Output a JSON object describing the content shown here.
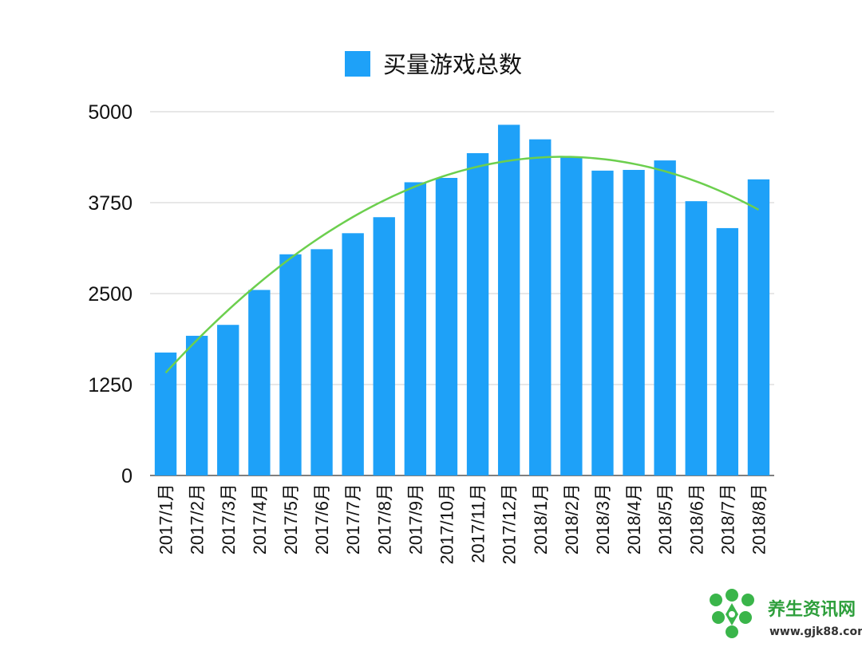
{
  "chart_data": {
    "type": "bar",
    "categories": [
      "2017/1月",
      "2017/2月",
      "2017/3月",
      "2017/4月",
      "2017/5月",
      "2017/6月",
      "2017/7月",
      "2017/8月",
      "2017/9月",
      "2017/10月",
      "2017/11月",
      "2017/12月",
      "2018/1月",
      "2018/2月",
      "2018/3月",
      "2018/4月",
      "2018/5月",
      "2018/6月",
      "2018/7月",
      "2018/8月"
    ],
    "series": [
      {
        "name": "买量游戏总数",
        "values": [
          1690,
          1920,
          2070,
          2550,
          3040,
          3110,
          3330,
          3550,
          4030,
          4090,
          4430,
          4820,
          4620,
          4380,
          4190,
          4200,
          4330,
          3770,
          3400,
          4070
        ],
        "color": "#1ea1f8"
      }
    ],
    "trendline": {
      "type": "polynomial-2",
      "color": "#6ccf4e"
    },
    "ylim": [
      0,
      5000
    ],
    "yticks": [
      "0",
      "1250",
      "2500",
      "3750",
      "5000"
    ],
    "grid": true,
    "legend_position": "top-center"
  },
  "watermark": {
    "name": "养生资讯网",
    "url": "www.gjk88.com"
  }
}
